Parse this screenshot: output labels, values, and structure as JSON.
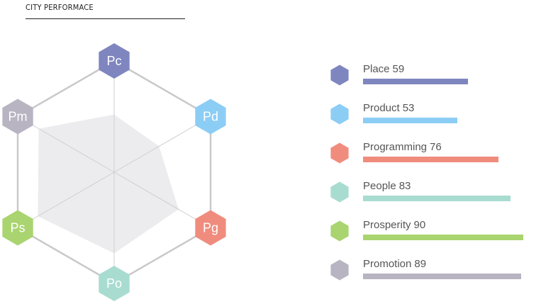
{
  "title": "CITY PERFORMACE",
  "chart_data": {
    "type": "radar",
    "title": "CITY PERFORMACE",
    "max": 100,
    "axes": [
      {
        "code": "Pc",
        "name": "Place",
        "value": 59,
        "color": "#7f86bf"
      },
      {
        "code": "Pd",
        "name": "Product",
        "value": 53,
        "color": "#8ccdf5"
      },
      {
        "code": "Pg",
        "name": "Programming",
        "value": 76,
        "color": "#f08c7e"
      },
      {
        "code": "Po",
        "name": "People",
        "value": 83,
        "color": "#a8dcd0"
      },
      {
        "code": "Ps",
        "name": "Prosperity",
        "value": 90,
        "color": "#a9d46f"
      },
      {
        "code": "Pm",
        "name": "Promotion",
        "value": 89,
        "color": "#b8b4c2"
      }
    ]
  }
}
